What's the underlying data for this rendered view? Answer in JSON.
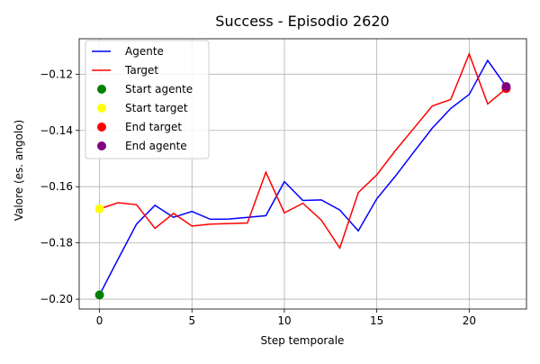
{
  "chart_data": {
    "type": "line",
    "title": "Success - Episodio 2620",
    "xlabel": "Step temporale",
    "ylabel": "Valore (es. angolo)",
    "xlim": [
      -1.1,
      23.1
    ],
    "ylim": [
      -0.2035,
      -0.1074
    ],
    "xticks": [
      0,
      5,
      10,
      15,
      20
    ],
    "xtick_labels": [
      "0",
      "5",
      "10",
      "15",
      "20"
    ],
    "yticks": [
      -0.2,
      -0.18,
      -0.16,
      -0.14,
      -0.12
    ],
    "ytick_labels": [
      "−0.20",
      "−0.18",
      "−0.16",
      "−0.14",
      "−0.12"
    ],
    "grid": true,
    "legend_position": "top-left",
    "series": [
      {
        "name": "Agente",
        "kind": "line",
        "color": "#0000ff",
        "x": [
          0,
          1,
          2,
          3,
          4,
          5,
          6,
          7,
          8,
          9,
          10,
          11,
          12,
          13,
          14,
          15,
          16,
          17,
          18,
          19,
          20,
          21,
          22
        ],
        "y": [
          -0.1985,
          -0.1858,
          -0.1733,
          -0.1666,
          -0.1709,
          -0.1688,
          -0.1716,
          -0.1715,
          -0.1709,
          -0.1703,
          -0.1582,
          -0.1649,
          -0.1647,
          -0.1683,
          -0.1757,
          -0.1643,
          -0.1563,
          -0.1477,
          -0.1392,
          -0.1322,
          -0.1272,
          -0.1151,
          -0.1244
        ]
      },
      {
        "name": "Target",
        "kind": "line",
        "color": "#ff0000",
        "x": [
          0,
          1,
          2,
          3,
          4,
          5,
          6,
          7,
          8,
          9,
          10,
          11,
          12,
          13,
          14,
          15,
          16,
          17,
          18,
          19,
          20,
          21,
          22
        ],
        "y": [
          -0.1679,
          -0.1657,
          -0.1664,
          -0.1748,
          -0.1695,
          -0.174,
          -0.1733,
          -0.1731,
          -0.1729,
          -0.1549,
          -0.1693,
          -0.1659,
          -0.1719,
          -0.1818,
          -0.1621,
          -0.1558,
          -0.1472,
          -0.1393,
          -0.1313,
          -0.129,
          -0.1128,
          -0.1306,
          -0.1251
        ]
      },
      {
        "name": "Start agente",
        "kind": "point",
        "color": "#008000",
        "x": [
          0
        ],
        "y": [
          -0.1985
        ]
      },
      {
        "name": "Start target",
        "kind": "point",
        "color": "#ffff00",
        "x": [
          0
        ],
        "y": [
          -0.1679
        ]
      },
      {
        "name": "End target",
        "kind": "point",
        "color": "#ff0000",
        "x": [
          22
        ],
        "y": [
          -0.1251
        ]
      },
      {
        "name": "End agente",
        "kind": "point",
        "color": "#800080",
        "x": [
          22
        ],
        "y": [
          -0.1244
        ]
      }
    ]
  }
}
